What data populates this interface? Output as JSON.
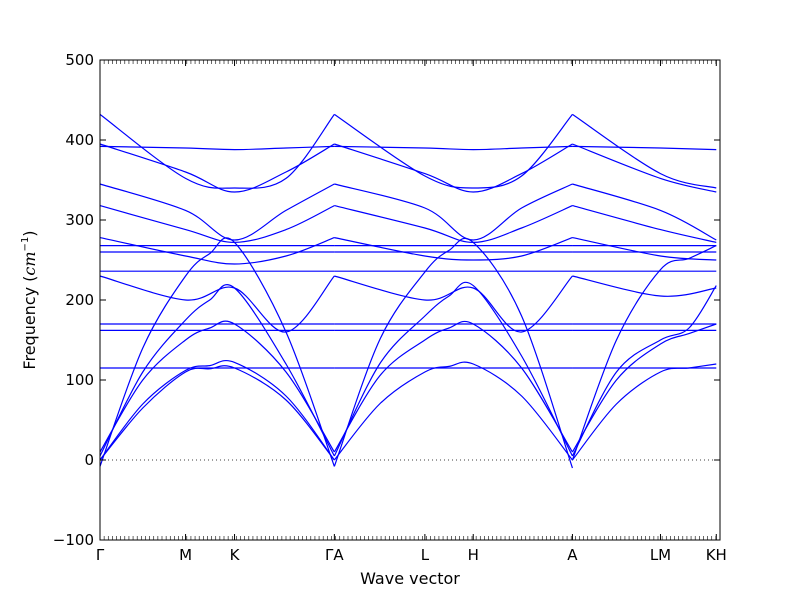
{
  "chart_data": {
    "type": "line",
    "title": "",
    "xlabel": "Wave vector",
    "ylabel_main": "Frequency (",
    "ylabel_unit": "cm",
    "ylabel_exp": "−1",
    "ylabel_close": ")",
    "ylim": [
      -100,
      500
    ],
    "yticks": [
      -100,
      0,
      100,
      200,
      300,
      400,
      500
    ],
    "ytick_labels": [
      "−100",
      "0",
      "100",
      "200",
      "300",
      "400",
      "500"
    ],
    "x_range": [
      0,
      1
    ],
    "xticks": [
      {
        "label": "Γ",
        "x": 0.0
      },
      {
        "label": "M",
        "x": 0.138
      },
      {
        "label": "K",
        "x": 0.217
      },
      {
        "label": "ΓA",
        "x": 0.378
      },
      {
        "label": "L",
        "x": 0.524
      },
      {
        "label": "H",
        "x": 0.602
      },
      {
        "label": "A",
        "x": 0.762
      },
      {
        "label": "LM",
        "x": 0.904
      },
      {
        "label": "KH",
        "x": 0.994
      }
    ],
    "zero_line": true,
    "line_color": "#0000ff",
    "branches": [
      {
        "x": [
          0.0,
          0.069,
          0.138,
          0.177,
          0.217,
          0.3,
          0.378
        ],
        "y": [
          -8,
          140,
          230,
          258,
          272,
          160,
          -8
        ]
      },
      {
        "x": [
          0.0,
          0.069,
          0.138,
          0.177,
          0.217,
          0.3,
          0.378
        ],
        "y": [
          5,
          110,
          175,
          200,
          215,
          120,
          5
        ]
      },
      {
        "x": [
          0.0,
          0.069,
          0.138,
          0.177,
          0.217,
          0.3,
          0.378
        ],
        "y": [
          10,
          100,
          150,
          165,
          170,
          110,
          10
        ]
      },
      {
        "x": [
          0.0,
          0.069,
          0.138,
          0.177,
          0.217,
          0.3,
          0.378
        ],
        "y": [
          0,
          70,
          112,
          118,
          122,
          80,
          0
        ]
      },
      {
        "x": [
          0.0,
          0.069,
          0.138,
          0.177,
          0.217,
          0.3,
          0.378
        ],
        "y": [
          0,
          65,
          110,
          114,
          115,
          75,
          0
        ]
      },
      {
        "x": [
          0.0,
          0.138,
          0.217,
          0.3,
          0.378
        ],
        "y": [
          230,
          200,
          215,
          160,
          230
        ]
      },
      {
        "x": [
          0.0,
          0.138,
          0.217,
          0.3,
          0.378
        ],
        "y": [
          278,
          255,
          245,
          255,
          278
        ]
      },
      {
        "x": [
          0.0,
          0.138,
          0.217,
          0.3,
          0.378
        ],
        "y": [
          318,
          288,
          272,
          288,
          318
        ]
      },
      {
        "x": [
          0.0,
          0.138,
          0.217,
          0.3,
          0.378
        ],
        "y": [
          345,
          312,
          275,
          312,
          345
        ]
      },
      {
        "x": [
          0.0,
          0.138,
          0.217,
          0.3,
          0.378
        ],
        "y": [
          432,
          352,
          340,
          352,
          432
        ]
      },
      {
        "x": [
          0.0,
          0.138,
          0.217,
          0.3,
          0.378
        ],
        "y": [
          395,
          360,
          335,
          360,
          395
        ]
      },
      {
        "x": [
          0.0,
          0.138,
          0.217,
          0.3,
          0.378
        ],
        "y": [
          392,
          390,
          388,
          390,
          392
        ]
      },
      {
        "x": [
          0.0,
          0.138,
          0.217,
          0.3,
          0.378
        ],
        "y": [
          268,
          268,
          268,
          268,
          268
        ]
      },
      {
        "x": [
          0.0,
          0.138,
          0.217,
          0.3,
          0.378
        ],
        "y": [
          260,
          260,
          260,
          260,
          260
        ]
      },
      {
        "x": [
          0.0,
          0.138,
          0.217,
          0.3,
          0.378
        ],
        "y": [
          236,
          236,
          236,
          236,
          236
        ]
      },
      {
        "x": [
          0.0,
          0.138,
          0.217,
          0.3,
          0.378
        ],
        "y": [
          170,
          170,
          170,
          170,
          170
        ]
      },
      {
        "x": [
          0.0,
          0.138,
          0.217,
          0.3,
          0.378
        ],
        "y": [
          162,
          162,
          162,
          162,
          162
        ]
      },
      {
        "x": [
          0.0,
          0.138,
          0.217,
          0.3,
          0.378
        ],
        "y": [
          115,
          115,
          115,
          115,
          115
        ]
      },
      {
        "x": [
          0.378,
          0.451,
          0.524,
          0.563,
          0.602,
          0.68,
          0.762
        ],
        "y": [
          -8,
          150,
          235,
          262,
          272,
          180,
          -10
        ]
      },
      {
        "x": [
          0.378,
          0.451,
          0.524,
          0.563,
          0.602,
          0.68,
          0.762
        ],
        "y": [
          5,
          120,
          180,
          205,
          218,
          130,
          5
        ]
      },
      {
        "x": [
          0.378,
          0.451,
          0.524,
          0.563,
          0.602,
          0.68,
          0.762
        ],
        "y": [
          10,
          105,
          150,
          165,
          170,
          115,
          10
        ]
      },
      {
        "x": [
          0.378,
          0.451,
          0.524,
          0.563,
          0.602,
          0.68,
          0.762
        ],
        "y": [
          0,
          70,
          110,
          117,
          120,
          80,
          0
        ]
      },
      {
        "x": [
          0.378,
          0.524,
          0.602,
          0.68,
          0.762
        ],
        "y": [
          230,
          200,
          215,
          160,
          230
        ]
      },
      {
        "x": [
          0.378,
          0.524,
          0.602,
          0.68,
          0.762
        ],
        "y": [
          278,
          255,
          250,
          255,
          278
        ]
      },
      {
        "x": [
          0.378,
          0.524,
          0.602,
          0.68,
          0.762
        ],
        "y": [
          318,
          290,
          272,
          290,
          318
        ]
      },
      {
        "x": [
          0.378,
          0.524,
          0.602,
          0.68,
          0.762
        ],
        "y": [
          345,
          315,
          275,
          315,
          345
        ]
      },
      {
        "x": [
          0.378,
          0.524,
          0.602,
          0.68,
          0.762
        ],
        "y": [
          432,
          355,
          340,
          355,
          432
        ]
      },
      {
        "x": [
          0.378,
          0.524,
          0.602,
          0.68,
          0.762
        ],
        "y": [
          395,
          358,
          335,
          358,
          395
        ]
      },
      {
        "x": [
          0.378,
          0.524,
          0.602,
          0.68,
          0.762
        ],
        "y": [
          392,
          390,
          388,
          390,
          392
        ]
      },
      {
        "x": [
          0.378,
          0.524,
          0.602,
          0.68,
          0.762
        ],
        "y": [
          268,
          268,
          268,
          268,
          268
        ]
      },
      {
        "x": [
          0.378,
          0.524,
          0.602,
          0.68,
          0.762
        ],
        "y": [
          260,
          260,
          260,
          260,
          260
        ]
      },
      {
        "x": [
          0.378,
          0.524,
          0.602,
          0.68,
          0.762
        ],
        "y": [
          236,
          236,
          236,
          236,
          236
        ]
      },
      {
        "x": [
          0.378,
          0.524,
          0.602,
          0.68,
          0.762
        ],
        "y": [
          170,
          170,
          170,
          170,
          170
        ]
      },
      {
        "x": [
          0.378,
          0.524,
          0.602,
          0.68,
          0.762
        ],
        "y": [
          162,
          162,
          162,
          162,
          162
        ]
      },
      {
        "x": [
          0.378,
          0.524,
          0.602,
          0.68,
          0.762
        ],
        "y": [
          115,
          115,
          115,
          115,
          115
        ]
      },
      {
        "x": [
          0.762,
          0.833,
          0.904,
          0.95,
          0.994
        ],
        "y": [
          0,
          150,
          238,
          252,
          268
        ]
      },
      {
        "x": [
          0.762,
          0.833,
          0.904,
          0.95,
          0.994
        ],
        "y": [
          5,
          110,
          150,
          165,
          218
        ]
      },
      {
        "x": [
          0.762,
          0.833,
          0.904,
          0.95,
          0.994
        ],
        "y": [
          10,
          100,
          145,
          158,
          170
        ]
      },
      {
        "x": [
          0.762,
          0.833,
          0.904,
          0.95,
          0.994
        ],
        "y": [
          0,
          70,
          110,
          115,
          120
        ]
      },
      {
        "x": [
          0.762,
          0.904,
          0.994
        ],
        "y": [
          230,
          205,
          215
        ]
      },
      {
        "x": [
          0.762,
          0.904,
          0.994
        ],
        "y": [
          278,
          255,
          250
        ]
      },
      {
        "x": [
          0.762,
          0.904,
          0.994
        ],
        "y": [
          318,
          288,
          272
        ]
      },
      {
        "x": [
          0.762,
          0.904,
          0.994
        ],
        "y": [
          345,
          312,
          275
        ]
      },
      {
        "x": [
          0.762,
          0.904,
          0.994
        ],
        "y": [
          432,
          358,
          340
        ]
      },
      {
        "x": [
          0.762,
          0.904,
          0.994
        ],
        "y": [
          395,
          352,
          335
        ]
      },
      {
        "x": [
          0.762,
          0.904,
          0.994
        ],
        "y": [
          392,
          390,
          388
        ]
      },
      {
        "x": [
          0.762,
          0.904,
          0.994
        ],
        "y": [
          268,
          268,
          268
        ]
      },
      {
        "x": [
          0.762,
          0.904,
          0.994
        ],
        "y": [
          260,
          260,
          260
        ]
      },
      {
        "x": [
          0.762,
          0.904,
          0.994
        ],
        "y": [
          236,
          236,
          236
        ]
      },
      {
        "x": [
          0.762,
          0.904,
          0.994
        ],
        "y": [
          170,
          170,
          170
        ]
      },
      {
        "x": [
          0.762,
          0.904,
          0.994
        ],
        "y": [
          162,
          162,
          162
        ]
      },
      {
        "x": [
          0.762,
          0.904,
          0.994
        ],
        "y": [
          115,
          115,
          115
        ]
      }
    ]
  }
}
